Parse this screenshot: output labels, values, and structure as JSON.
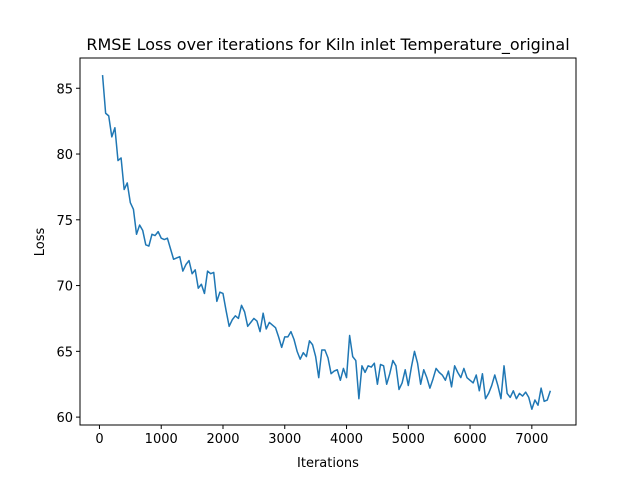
{
  "chart_data": {
    "type": "line",
    "title": "RMSE Loss over iterations for Kiln inlet Temperature_original",
    "x_label": "Iterations",
    "y_label": "Loss",
    "x": [
      50,
      100,
      150,
      200,
      250,
      300,
      350,
      400,
      450,
      500,
      550,
      600,
      650,
      700,
      750,
      800,
      850,
      900,
      950,
      1000,
      1050,
      1100,
      1150,
      1200,
      1250,
      1300,
      1350,
      1400,
      1450,
      1500,
      1550,
      1600,
      1650,
      1700,
      1750,
      1800,
      1850,
      1900,
      1950,
      2000,
      2050,
      2100,
      2150,
      2200,
      2250,
      2300,
      2350,
      2400,
      2450,
      2500,
      2550,
      2600,
      2650,
      2700,
      2750,
      2800,
      2850,
      2900,
      2950,
      3000,
      3050,
      3100,
      3150,
      3200,
      3250,
      3300,
      3350,
      3400,
      3450,
      3500,
      3550,
      3600,
      3650,
      3700,
      3750,
      3800,
      3850,
      3900,
      3950,
      4000,
      4050,
      4100,
      4150,
      4200,
      4250,
      4300,
      4350,
      4400,
      4450,
      4500,
      4550,
      4600,
      4650,
      4700,
      4750,
      4800,
      4850,
      4900,
      4950,
      5000,
      5050,
      5100,
      5150,
      5200,
      5250,
      5300,
      5350,
      5400,
      5450,
      5500,
      5550,
      5600,
      5650,
      5700,
      5750,
      5800,
      5850,
      5900,
      5950,
      6000,
      6050,
      6100,
      6150,
      6200,
      6250,
      6300,
      6350,
      6400,
      6450,
      6500,
      6550,
      6600,
      6650,
      6700,
      6750,
      6800,
      6850,
      6900,
      6950,
      7000,
      7050,
      7100,
      7150,
      7200,
      7250,
      7300
    ],
    "series": [
      {
        "name": "Loss",
        "color": "#1f77b4",
        "values": [
          86.0,
          83.1,
          82.9,
          81.3,
          82.0,
          79.5,
          79.7,
          77.3,
          77.8,
          76.3,
          75.8,
          73.9,
          74.6,
          74.2,
          73.1,
          73.0,
          73.9,
          73.8,
          74.1,
          73.6,
          73.5,
          73.6,
          72.8,
          72.0,
          72.1,
          72.2,
          71.1,
          71.6,
          71.9,
          70.9,
          71.2,
          69.8,
          70.1,
          69.4,
          71.1,
          70.9,
          71.0,
          68.8,
          69.5,
          69.4,
          68.1,
          66.9,
          67.4,
          67.7,
          67.5,
          68.5,
          68.0,
          66.9,
          67.2,
          67.5,
          67.3,
          66.5,
          67.9,
          66.7,
          67.2,
          67.0,
          66.8,
          66.1,
          65.3,
          66.1,
          66.1,
          66.5,
          65.9,
          65.0,
          64.4,
          64.9,
          64.6,
          65.8,
          65.5,
          64.6,
          63.0,
          65.1,
          65.1,
          64.5,
          63.3,
          63.5,
          63.6,
          62.8,
          63.7,
          63.0,
          66.2,
          64.6,
          64.3,
          61.4,
          63.9,
          63.4,
          63.9,
          63.8,
          64.1,
          62.5,
          64.0,
          63.9,
          62.5,
          63.3,
          64.3,
          63.9,
          62.1,
          62.6,
          63.6,
          62.4,
          63.8,
          65.0,
          64.1,
          62.5,
          63.6,
          63.0,
          62.2,
          62.9,
          63.7,
          63.4,
          63.2,
          62.8,
          63.5,
          62.3,
          63.9,
          63.4,
          63.0,
          63.7,
          63.0,
          62.8,
          62.6,
          63.2,
          62.0,
          63.3,
          61.4,
          61.8,
          62.4,
          63.2,
          62.4,
          61.4,
          63.9,
          61.8,
          61.5,
          62.0,
          61.4,
          61.8,
          61.6,
          61.9,
          61.5,
          60.6,
          61.3,
          60.9,
          62.2,
          61.2,
          61.3,
          62.0
        ]
      }
    ],
    "xlim": [
      -315,
      7715
    ],
    "xticks": [
      0,
      1000,
      2000,
      3000,
      4000,
      5000,
      6000,
      7000
    ],
    "ylim": [
      59.4,
      87.3
    ],
    "yticks": [
      60,
      65,
      70,
      75,
      80,
      85
    ]
  }
}
